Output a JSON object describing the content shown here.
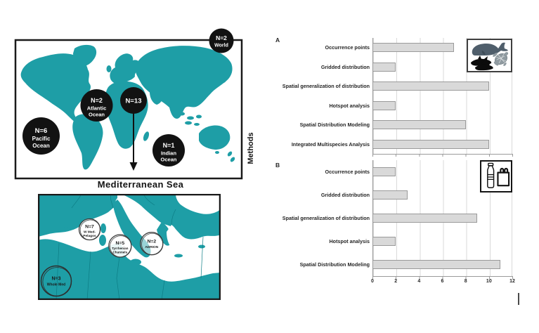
{
  "colors": {
    "teal": "#1E9EA6",
    "world_circle_fill": "#121212",
    "bar_fill": "#d9d9d9",
    "bar_border": "#9a9a9a",
    "gridline": "#d9d9d9"
  },
  "world_map": {
    "caption": "Mediterranean Sea",
    "circles": [
      {
        "n": "N=2",
        "label_lines": [
          "World"
        ]
      },
      {
        "n": "N=2",
        "label_lines": [
          "Atlantic",
          "Ocean"
        ]
      },
      {
        "n": "N=13",
        "label_lines": []
      },
      {
        "n": "N=6",
        "label_lines": [
          "Pacific",
          "Ocean"
        ]
      },
      {
        "n": "N=1",
        "label_lines": [
          "Indian",
          "Ocean"
        ]
      }
    ]
  },
  "med_map": {
    "circles": [
      {
        "n": "N=7",
        "label_lines": [
          "W Med-",
          "Pelagos"
        ]
      },
      {
        "n": "N=5",
        "label_lines": [
          "Tyrrhenian",
          "Channels"
        ]
      },
      {
        "n": "N=2",
        "label_lines": [
          "ADRION"
        ]
      },
      {
        "n": "N=3",
        "label_lines": [
          "Whole Med"
        ]
      }
    ]
  },
  "axis_title": "Methods",
  "chart_data": [
    {
      "type": "bar",
      "orientation": "horizontal",
      "panel": "A",
      "icons": [
        "whale",
        "dolphins",
        "sea-turtle"
      ],
      "categories": [
        "Occurrence points",
        "Gridded distribution",
        "Spatial generalization of distribution",
        "Hotspot analysis",
        "Spatial Distribution Modeling",
        "Integrated Multispecies Analysis"
      ],
      "values": [
        7,
        2,
        10,
        2,
        8,
        10
      ],
      "xlim": [
        0,
        12
      ],
      "xticks": [
        0,
        2,
        4,
        6,
        8,
        10,
        12
      ],
      "xtick_labels_visible": false,
      "ylabel": "Methods",
      "grid": true,
      "legend": "none"
    },
    {
      "type": "bar",
      "orientation": "horizontal",
      "panel": "B",
      "icons": [
        "plastic-bottle",
        "plastic-bag"
      ],
      "categories": [
        "Occurrence points",
        "Gridded distribution",
        "Spatial generalization of distribution",
        "Hotspot analysis",
        "Spatial Distribution Modeling"
      ],
      "values": [
        2,
        3,
        9,
        2,
        11
      ],
      "xlim": [
        0,
        12
      ],
      "xticks": [
        0,
        2,
        4,
        6,
        8,
        10,
        12
      ],
      "xtick_labels_visible": true,
      "ylabel": "Methods",
      "grid": true,
      "legend": "none"
    }
  ]
}
